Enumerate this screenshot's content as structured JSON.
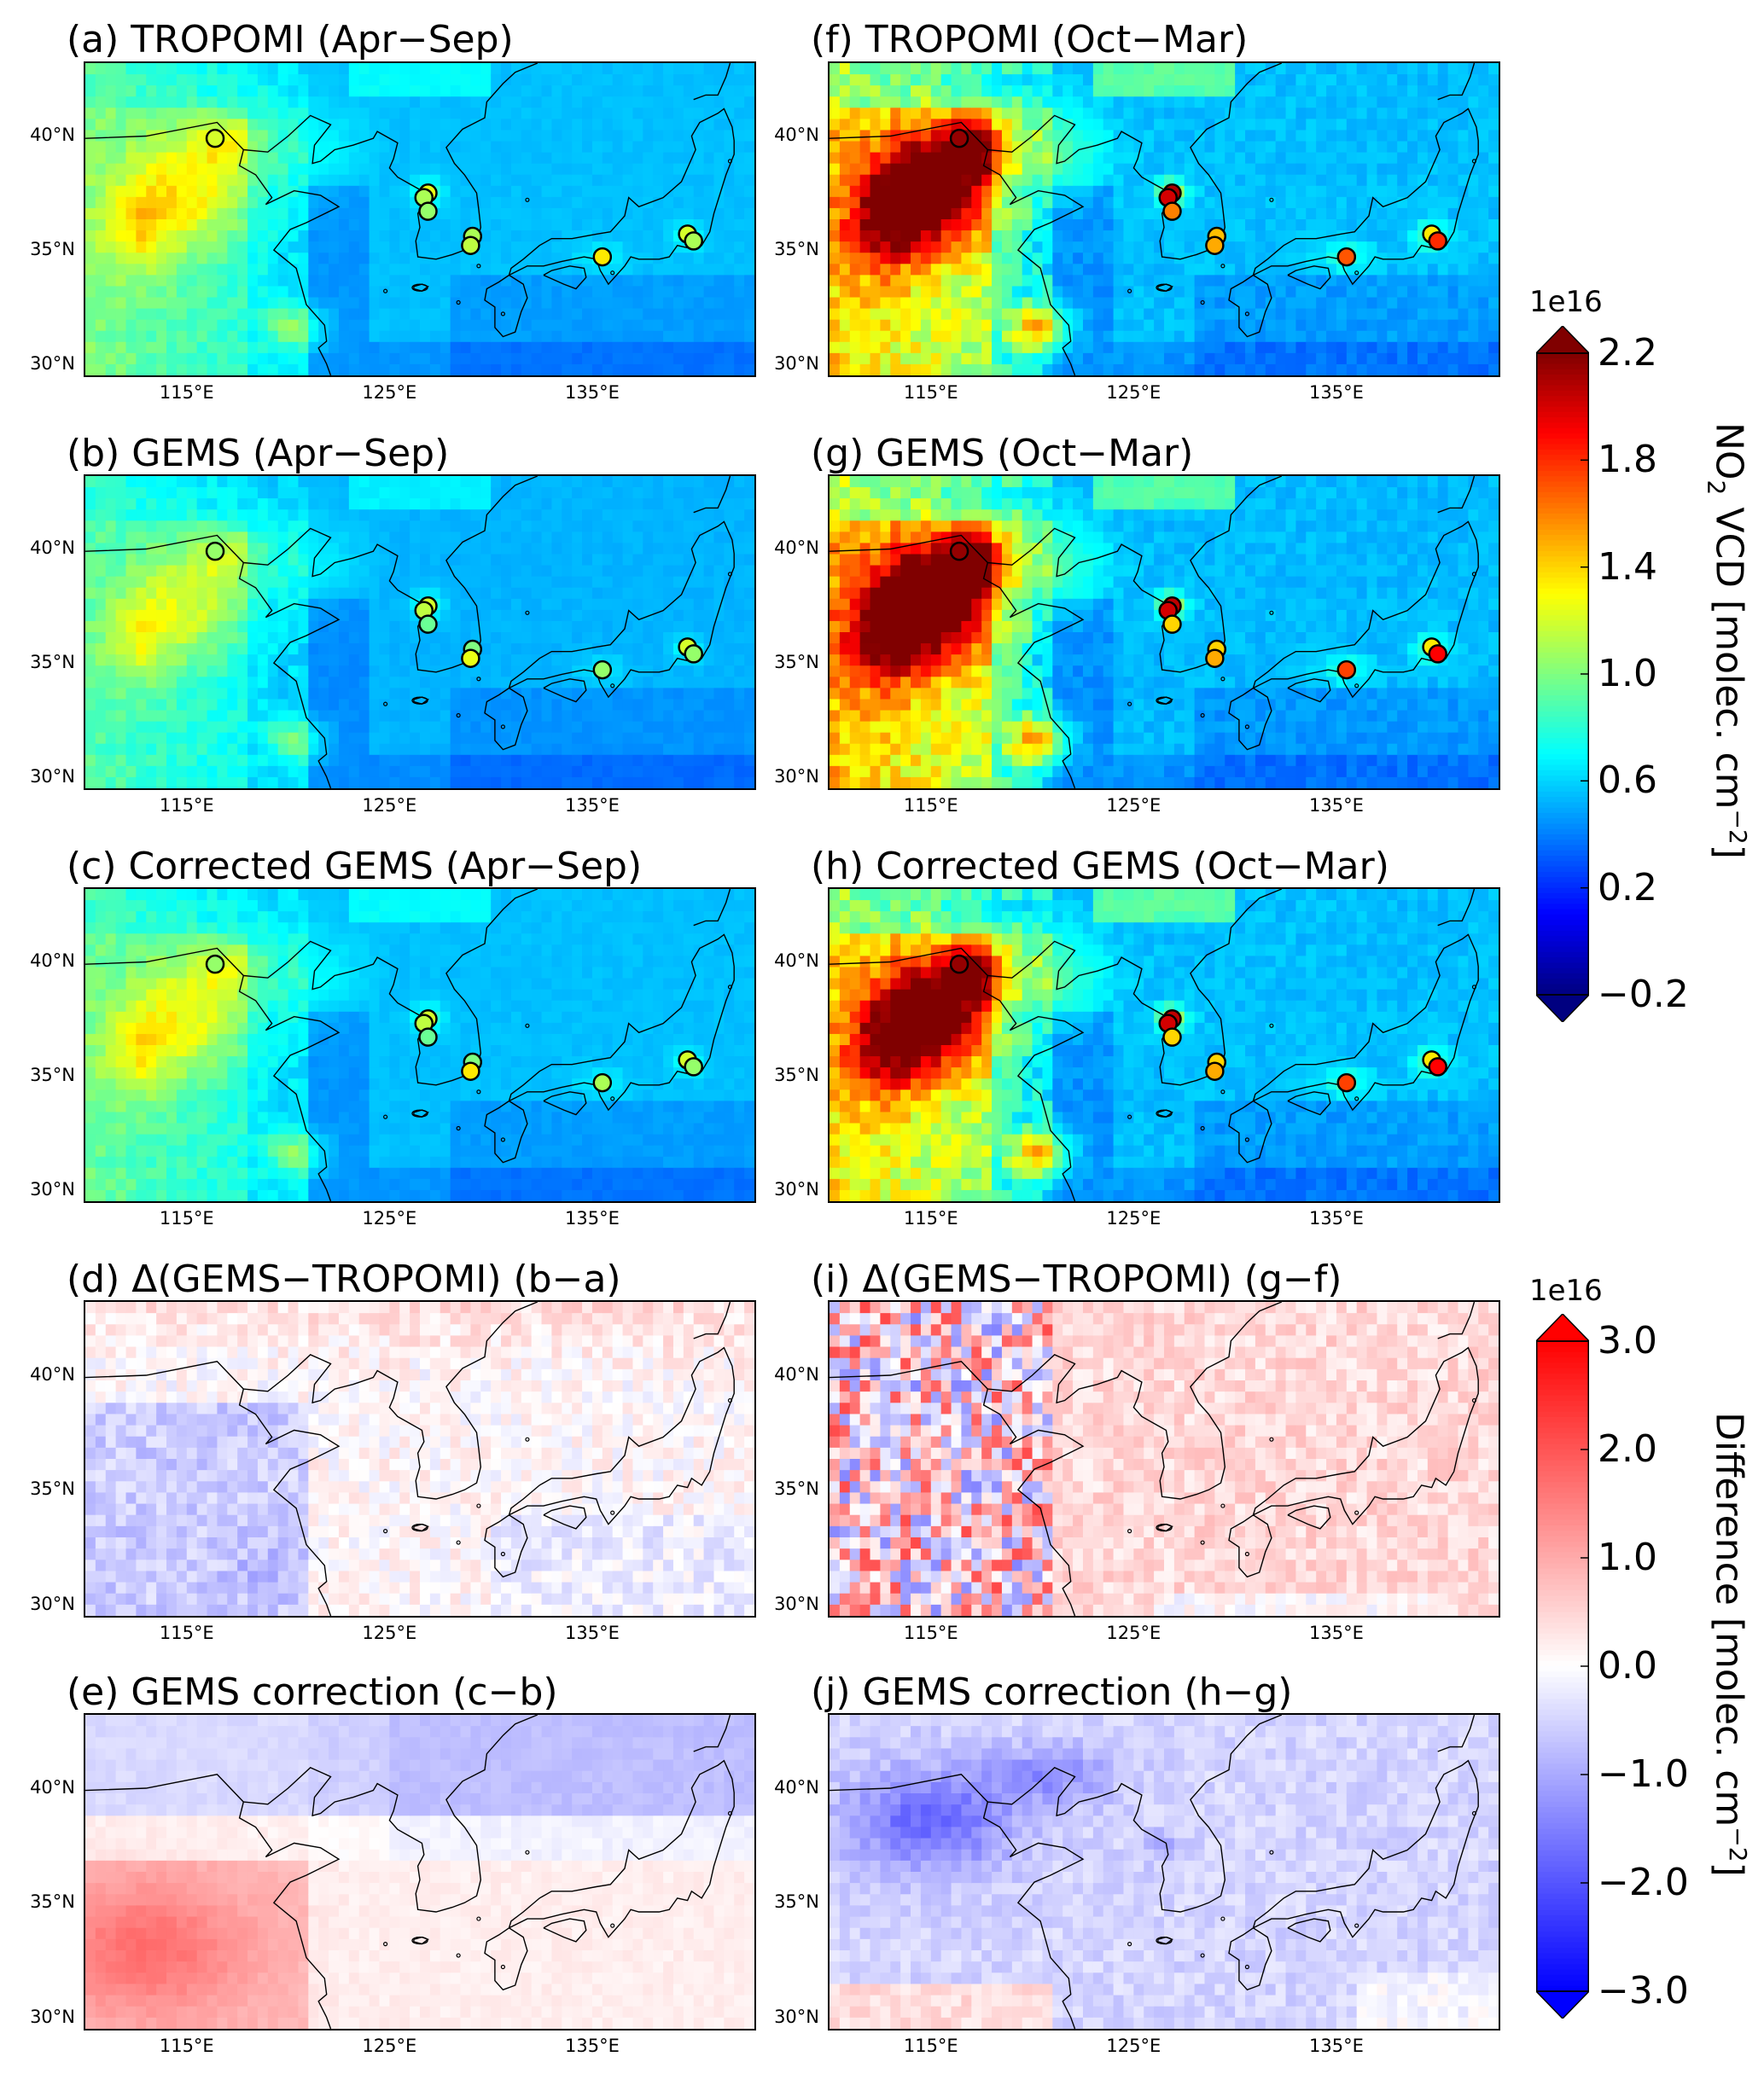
{
  "panels": [
    {
      "title": "(a) TROPOMI (Apr−Sep)",
      "kind": "vcd",
      "season": "summer",
      "variant": "trop"
    },
    {
      "title": "(b) GEMS (Apr−Sep)",
      "kind": "vcd",
      "season": "summer",
      "variant": "gems"
    },
    {
      "title": "(c) Corrected GEMS (Apr−Sep)",
      "kind": "vcd",
      "season": "summer",
      "variant": "corr"
    },
    {
      "title": "(d) Δ(GEMS−TROPOMI) (b−a)",
      "kind": "diff",
      "season": "summer",
      "variant": "delta"
    },
    {
      "title": "(e) GEMS correction (c−b)",
      "kind": "diff",
      "season": "summer",
      "variant": "correction"
    },
    {
      "title": "(f) TROPOMI (Oct−Mar)",
      "kind": "vcd",
      "season": "winter",
      "variant": "trop"
    },
    {
      "title": "(g) GEMS (Oct−Mar)",
      "kind": "vcd",
      "season": "winter",
      "variant": "gems"
    },
    {
      "title": "(h) Corrected GEMS (Oct−Mar)",
      "kind": "vcd",
      "season": "winter",
      "variant": "corr"
    },
    {
      "title": "(i) Δ(GEMS−TROPOMI) (g−f)",
      "kind": "diff",
      "season": "winter",
      "variant": "delta"
    },
    {
      "title": "(j) GEMS correction (h−g)",
      "kind": "diff",
      "season": "winter",
      "variant": "correction"
    }
  ],
  "lat_ticks_top": [
    "40°N",
    "35°N",
    "30°N"
  ],
  "lat_ticks_diff": [
    "40°N",
    "35°N",
    "30°N"
  ],
  "lon_ticks": [
    "115°E",
    "125°E",
    "135°E"
  ],
  "colorbars": [
    {
      "id": "vcd",
      "exponent": "1e16",
      "label_main": "NO",
      "label_sub": "2",
      "label_rest": " VCD [molec. cm",
      "label_sup": "−2",
      "label_end": "]",
      "ticks": [
        "2.2",
        "1.8",
        "1.4",
        "1.0",
        "0.6",
        "0.2",
        "−0.2"
      ],
      "colormap": "jet",
      "range": [
        -0.2,
        2.2
      ]
    },
    {
      "id": "diff",
      "exponent": "1e16",
      "label_main": "Difference [molec. cm",
      "label_sup": "−2",
      "label_end": "]",
      "ticks": [
        "3.0",
        "2.0",
        "1.0",
        "0.0",
        "−1.0",
        "−2.0",
        "−3.0"
      ],
      "colormap": "bwr",
      "range": [
        -3.0,
        3.0
      ]
    }
  ],
  "colors": {
    "land_outline": "#000000",
    "frame": "#000000"
  }
}
